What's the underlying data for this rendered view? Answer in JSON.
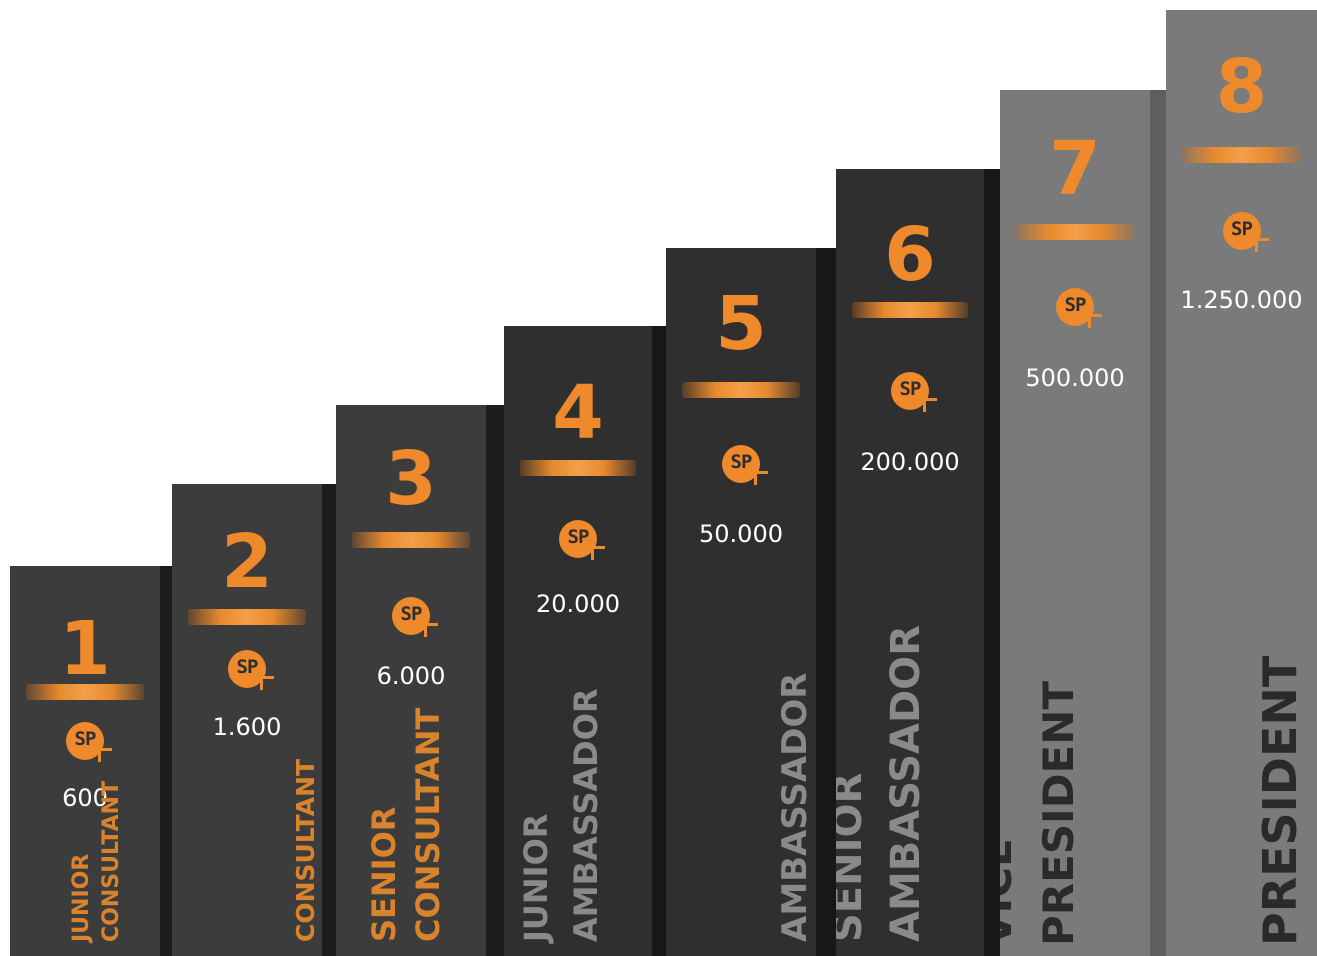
{
  "badge_label": "SP",
  "badge_icon": "sp-plus-icon",
  "colors": {
    "accent": "#ef8a2c",
    "dark_step": "#3c3c3c",
    "darker_step": "#2f2f2f",
    "light_step": "#7a7a7a",
    "points_text": "#ffffff"
  },
  "levels": [
    {
      "number": "1",
      "points": "600",
      "title_lines": [
        "JUNIOR",
        "CONSULTANT"
      ]
    },
    {
      "number": "2",
      "points": "1.600",
      "title_lines": [
        "CONSULTANT"
      ]
    },
    {
      "number": "3",
      "points": "6.000",
      "title_lines": [
        "SENIOR",
        "CONSULTANT"
      ]
    },
    {
      "number": "4",
      "points": "20.000",
      "title_lines": [
        "JUNIOR",
        "AMBASSADOR"
      ]
    },
    {
      "number": "5",
      "points": "50.000",
      "title_lines": [
        "AMBASSADOR"
      ]
    },
    {
      "number": "6",
      "points": "200.000",
      "title_lines": [
        "SENIOR",
        "AMBASSADOR"
      ]
    },
    {
      "number": "7",
      "points": "500.000",
      "title_lines": [
        "VICE",
        "PRESIDENT"
      ]
    },
    {
      "number": "8",
      "points": "1.250.000",
      "title_lines": [
        "PRESIDENT"
      ]
    }
  ]
}
